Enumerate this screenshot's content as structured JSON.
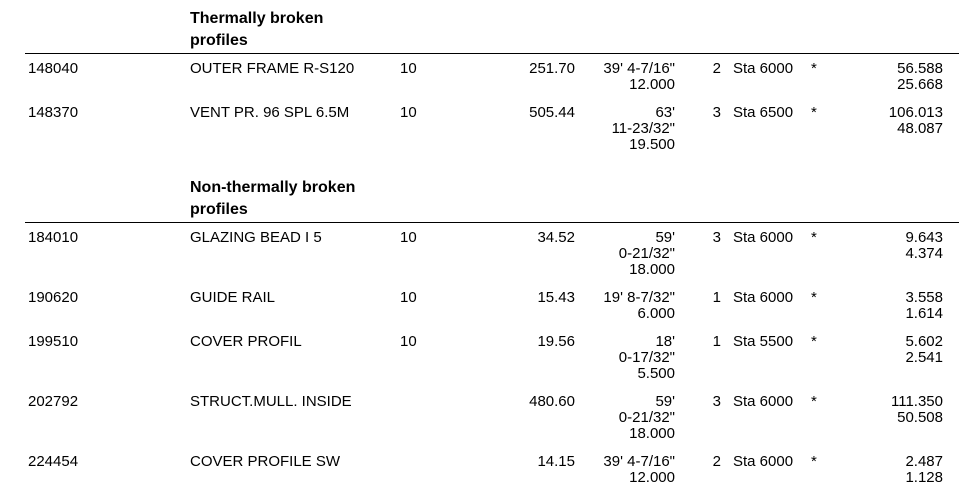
{
  "page": {
    "background_color": "#ffffff",
    "text_color": "#000000",
    "rule_color": "#000000"
  },
  "sections": [
    {
      "header": "Thermally broken profiles",
      "rows": [
        {
          "article": "148040",
          "description": "OUTER FRAME R-S120",
          "qty": "10",
          "total_length": "251.70",
          "dim_lines": [
            "39' 4-7/16\"",
            "12.000"
          ],
          "bar_count": "2",
          "stock": "Sta 6000",
          "flag": "*",
          "weight_lines": [
            "56.588",
            "25.668"
          ]
        },
        {
          "article": "148370",
          "description": "VENT PR. 96 SPL 6.5M",
          "qty": "10",
          "total_length": "505.44",
          "dim_lines": [
            "63'",
            "11-23/32\"",
            "19.500"
          ],
          "bar_count": "3",
          "stock": "Sta 6500",
          "flag": "*",
          "weight_lines": [
            "106.013",
            "48.087"
          ]
        }
      ]
    },
    {
      "header": "Non-thermally broken profiles",
      "rows": [
        {
          "article": "184010",
          "description": "GLAZING BEAD I 5",
          "qty": "10",
          "total_length": "34.52",
          "dim_lines": [
            "59'",
            "0-21/32\"",
            "18.000"
          ],
          "bar_count": "3",
          "stock": "Sta 6000",
          "flag": "*",
          "weight_lines": [
            "9.643",
            "4.374"
          ]
        },
        {
          "article": "190620",
          "description": "GUIDE RAIL",
          "qty": "10",
          "total_length": "15.43",
          "dim_lines": [
            "19' 8-7/32\"",
            "6.000"
          ],
          "bar_count": "1",
          "stock": "Sta 6000",
          "flag": "*",
          "weight_lines": [
            "3.558",
            "1.614"
          ]
        },
        {
          "article": "199510",
          "description": "COVER PROFIL",
          "qty": "10",
          "total_length": "19.56",
          "dim_lines": [
            "18'",
            "0-17/32\"",
            "5.500"
          ],
          "bar_count": "1",
          "stock": "Sta 5500",
          "flag": "*",
          "weight_lines": [
            "5.602",
            "2.541"
          ]
        },
        {
          "article": "202792",
          "description": "STRUCT.MULL. INSIDE",
          "qty": "",
          "total_length": "480.60",
          "dim_lines": [
            "59'",
            "0-21/32\"",
            "18.000"
          ],
          "bar_count": "3",
          "stock": "Sta 6000",
          "flag": "*",
          "weight_lines": [
            "111.350",
            "50.508"
          ]
        },
        {
          "article": "224454",
          "description": "COVER PROFILE SW",
          "qty": "",
          "total_length": "14.15",
          "dim_lines": [
            "39' 4-7/16\"",
            "12.000"
          ],
          "bar_count": "2",
          "stock": "Sta 6000",
          "flag": "*",
          "weight_lines": [
            "2.487",
            "1.128"
          ]
        }
      ]
    }
  ]
}
